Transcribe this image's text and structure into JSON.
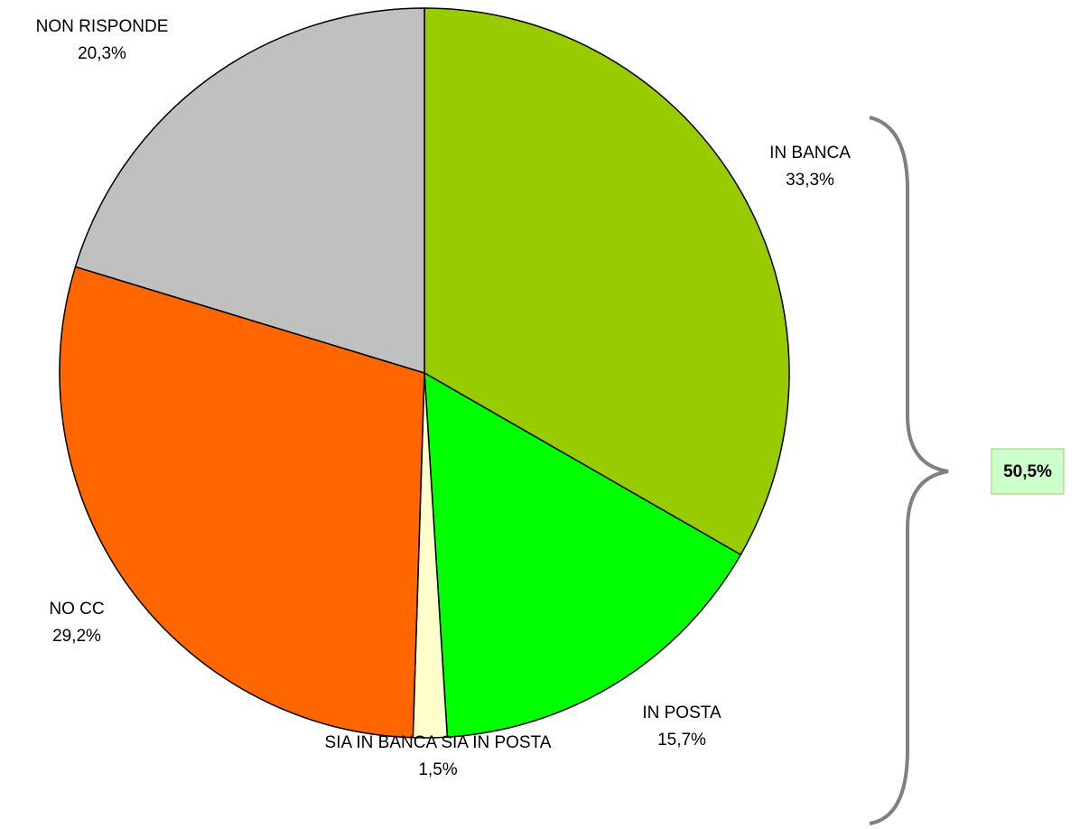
{
  "chart_data": {
    "type": "pie",
    "categories": [
      "IN BANCA",
      "IN POSTA",
      "SIA IN BANCA SIA IN POSTA",
      "NO CC",
      "NON RISPONDE"
    ],
    "values": [
      33.3,
      15.7,
      1.5,
      29.2,
      20.3
    ],
    "value_labels": [
      "33,3%",
      "15,7%",
      "1,5%",
      "29,2%",
      "20,3%"
    ],
    "colors": [
      "#99cc00",
      "#00ff00",
      "#ffffcc",
      "#ff6600",
      "#c0c0c0"
    ],
    "annotation": "50,5%"
  }
}
